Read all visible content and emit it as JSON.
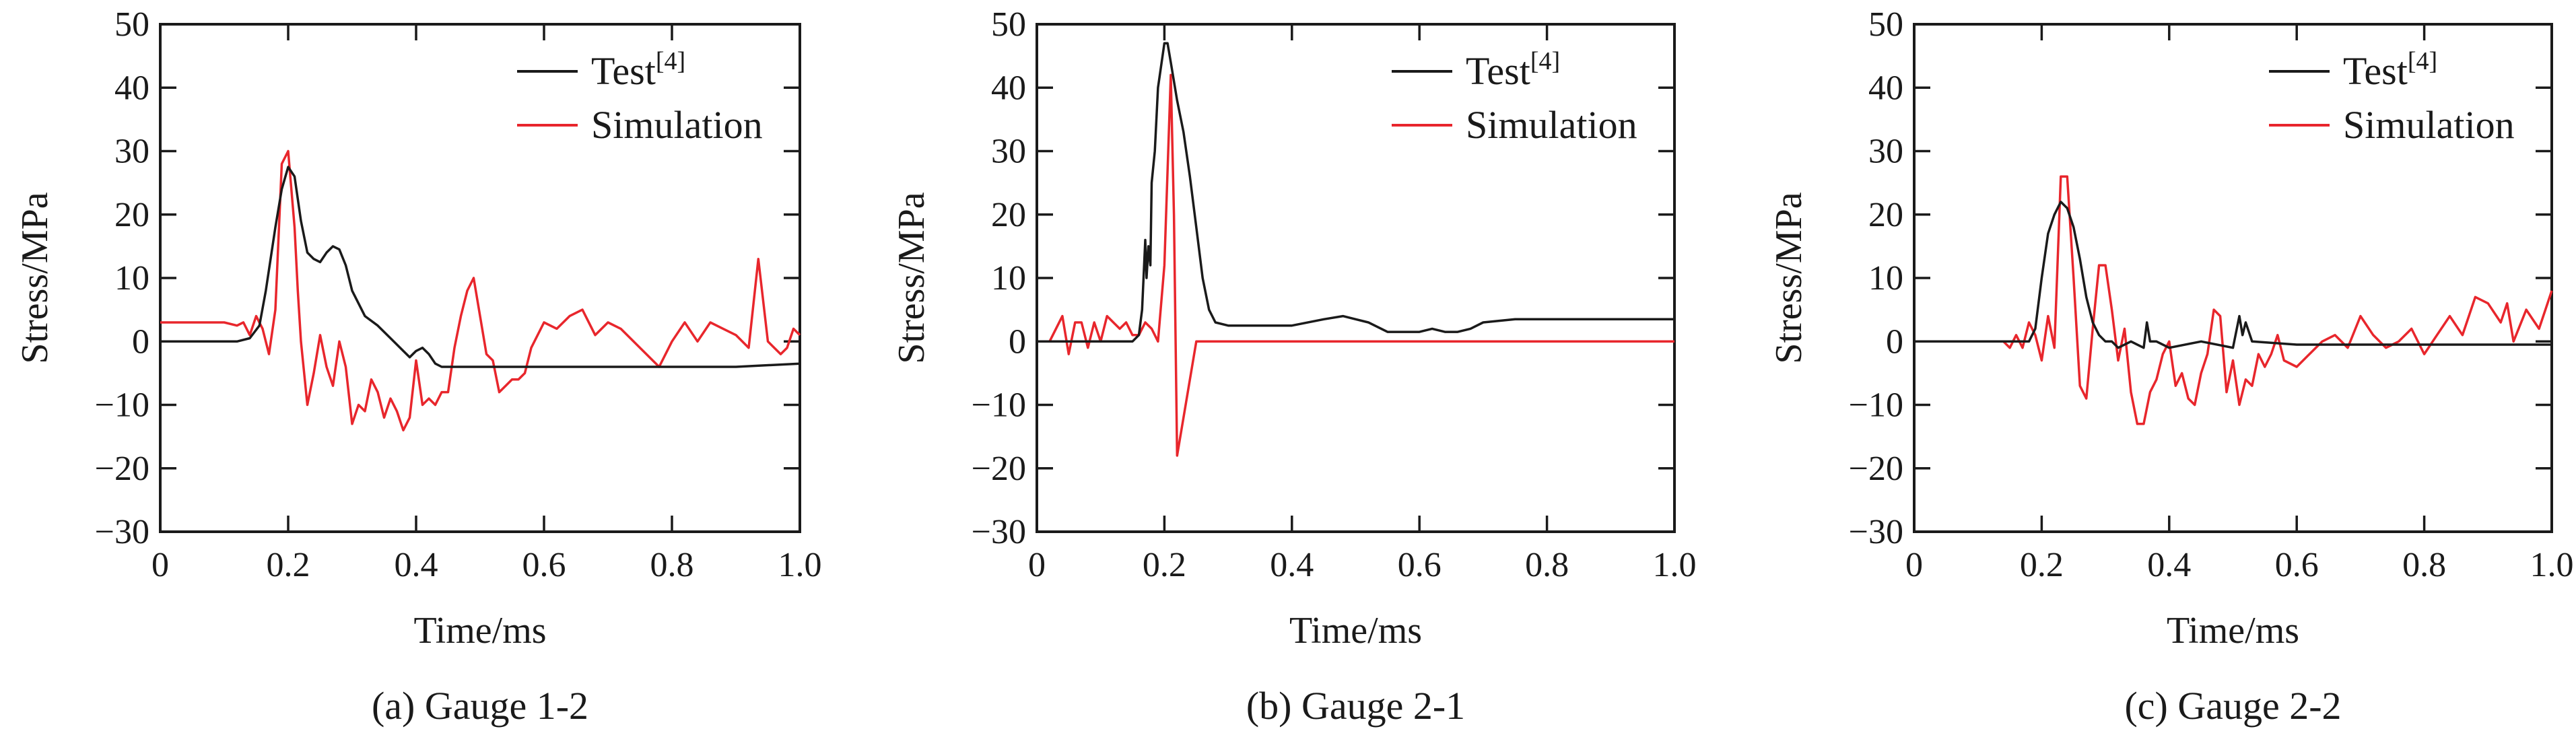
{
  "colors": {
    "test": "#1a1a1a",
    "simulation": "#e8262c",
    "axis": "#1a1a1a"
  },
  "chart_data": [
    {
      "type": "line",
      "caption": "(a) Gauge 1-2",
      "xlabel": "Time/ms",
      "ylabel": "Stress/MPa",
      "xlim": [
        0,
        1.0
      ],
      "ylim": [
        -30,
        50
      ],
      "xticks": [
        "0",
        "0.2",
        "0.4",
        "0.6",
        "0.8",
        "1.0"
      ],
      "yticks": [
        "50",
        "40",
        "30",
        "20",
        "10",
        "0",
        "−10",
        "−20",
        "−30"
      ],
      "legend_position": "top-right",
      "grid": false,
      "series": [
        {
          "name": "Test",
          "name_sup": "[4]",
          "color": "#1a1a1a",
          "x": [
            0,
            0.12,
            0.14,
            0.155,
            0.165,
            0.18,
            0.19,
            0.2,
            0.21,
            0.22,
            0.23,
            0.24,
            0.25,
            0.26,
            0.27,
            0.28,
            0.29,
            0.3,
            0.32,
            0.34,
            0.36,
            0.38,
            0.39,
            0.4,
            0.41,
            0.42,
            0.43,
            0.44,
            0.5,
            0.6,
            0.7,
            0.8,
            0.9,
            1.0
          ],
          "y": [
            0,
            0,
            0.5,
            2.5,
            8,
            18,
            24,
            27.5,
            26,
            19,
            14,
            13,
            12.5,
            14,
            15,
            14.5,
            12,
            8,
            4,
            2.5,
            0.5,
            -1.5,
            -2.5,
            -1.5,
            -1,
            -2,
            -3.5,
            -4,
            -4,
            -4,
            -4,
            -4,
            -4,
            -3.5
          ]
        },
        {
          "name": "Simulation",
          "color": "#e8262c",
          "x": [
            0,
            0.1,
            0.12,
            0.13,
            0.14,
            0.15,
            0.16,
            0.17,
            0.18,
            0.19,
            0.2,
            0.21,
            0.215,
            0.22,
            0.23,
            0.24,
            0.25,
            0.26,
            0.27,
            0.28,
            0.29,
            0.3,
            0.31,
            0.32,
            0.33,
            0.34,
            0.35,
            0.36,
            0.37,
            0.38,
            0.39,
            0.4,
            0.41,
            0.42,
            0.43,
            0.44,
            0.45,
            0.46,
            0.47,
            0.48,
            0.49,
            0.5,
            0.51,
            0.52,
            0.53,
            0.54,
            0.55,
            0.56,
            0.57,
            0.58,
            0.6,
            0.62,
            0.64,
            0.66,
            0.68,
            0.7,
            0.72,
            0.74,
            0.76,
            0.78,
            0.8,
            0.82,
            0.84,
            0.86,
            0.88,
            0.9,
            0.92,
            0.935,
            0.95,
            0.96,
            0.97,
            0.98,
            0.99,
            1.0
          ],
          "y": [
            3,
            3,
            2.5,
            3,
            1,
            4,
            2,
            -2,
            5,
            28,
            30,
            18,
            8,
            0,
            -10,
            -5,
            1,
            -4,
            -7,
            0,
            -4,
            -13,
            -10,
            -11,
            -6,
            -8,
            -12,
            -9,
            -11,
            -14,
            -12,
            -3,
            -10,
            -9,
            -10,
            -8,
            -8,
            -1,
            4,
            8,
            10,
            4,
            -2,
            -3,
            -8,
            -7,
            -6,
            -6,
            -5,
            -1,
            3,
            2,
            4,
            5,
            1,
            3,
            2,
            0,
            -2,
            -4,
            0,
            3,
            0,
            3,
            2,
            1,
            -1,
            13,
            0,
            -1,
            -2,
            -1,
            2,
            1
          ]
        }
      ]
    },
    {
      "type": "line",
      "caption": "(b) Gauge 2-1",
      "xlabel": "Time/ms",
      "ylabel": "Stress/MPa",
      "xlim": [
        0,
        1.0
      ],
      "ylim": [
        -30,
        50
      ],
      "xticks": [
        "0",
        "0.2",
        "0.4",
        "0.6",
        "0.8",
        "1.0"
      ],
      "yticks": [
        "50",
        "40",
        "30",
        "20",
        "10",
        "0",
        "−10",
        "−20",
        "−30"
      ],
      "legend_position": "top-right",
      "grid": false,
      "series": [
        {
          "name": "Test",
          "name_sup": "[4]",
          "color": "#1a1a1a",
          "x": [
            0,
            0.15,
            0.16,
            0.165,
            0.17,
            0.172,
            0.175,
            0.178,
            0.18,
            0.185,
            0.19,
            0.2,
            0.205,
            0.21,
            0.22,
            0.23,
            0.24,
            0.25,
            0.26,
            0.27,
            0.28,
            0.3,
            0.35,
            0.4,
            0.45,
            0.48,
            0.5,
            0.52,
            0.55,
            0.6,
            0.62,
            0.64,
            0.66,
            0.68,
            0.7,
            0.75,
            0.8,
            0.9,
            1.0
          ],
          "y": [
            0,
            0,
            1,
            5,
            16,
            10,
            15,
            12,
            25,
            30,
            40,
            47,
            47,
            44,
            38,
            33,
            26,
            18,
            10,
            5,
            3,
            2.5,
            2.5,
            2.5,
            3.5,
            4,
            3.5,
            3,
            1.5,
            1.5,
            2,
            1.5,
            1.5,
            2,
            3,
            3.5,
            3.5,
            3.5,
            3.5
          ]
        },
        {
          "name": "Simulation",
          "color": "#e8262c",
          "x": [
            0,
            0.02,
            0.04,
            0.05,
            0.06,
            0.07,
            0.08,
            0.09,
            0.1,
            0.11,
            0.12,
            0.13,
            0.14,
            0.15,
            0.16,
            0.17,
            0.18,
            0.19,
            0.2,
            0.21,
            0.215,
            0.22,
            0.23,
            0.25,
            0.5,
            0.75,
            1.0
          ],
          "y": [
            0,
            0,
            4,
            -2,
            3,
            3,
            -1,
            3,
            0,
            4,
            3,
            2,
            3,
            1,
            1,
            3,
            2,
            0,
            12,
            42,
            20,
            -18,
            -12,
            0,
            0,
            0,
            0
          ]
        }
      ]
    },
    {
      "type": "line",
      "caption": "(c) Gauge 2-2",
      "xlabel": "Time/ms",
      "ylabel": "Stress/MPa",
      "xlim": [
        0,
        1.0
      ],
      "ylim": [
        -30,
        50
      ],
      "xticks": [
        "0",
        "0.2",
        "0.4",
        "0.6",
        "0.8",
        "1.0"
      ],
      "yticks": [
        "50",
        "40",
        "30",
        "20",
        "10",
        "0",
        "−10",
        "−20",
        "−30"
      ],
      "legend_position": "top-right",
      "grid": false,
      "series": [
        {
          "name": "Test",
          "name_sup": "[4]",
          "color": "#1a1a1a",
          "x": [
            0,
            0.18,
            0.19,
            0.2,
            0.21,
            0.22,
            0.23,
            0.24,
            0.25,
            0.26,
            0.27,
            0.28,
            0.29,
            0.3,
            0.31,
            0.32,
            0.34,
            0.36,
            0.365,
            0.37,
            0.38,
            0.4,
            0.45,
            0.5,
            0.51,
            0.515,
            0.52,
            0.53,
            0.6,
            0.7,
            0.8,
            0.9,
            1.0
          ],
          "y": [
            0,
            0,
            2,
            10,
            17,
            20,
            22,
            21,
            18,
            13,
            7,
            3,
            1,
            0,
            0,
            -1,
            0,
            -1,
            3,
            0,
            0,
            -1,
            0,
            -1,
            4,
            1,
            3,
            0,
            -0.5,
            -0.5,
            -0.5,
            -0.5,
            -0.5
          ]
        },
        {
          "name": "Simulation",
          "color": "#e8262c",
          "x": [
            0,
            0.14,
            0.15,
            0.16,
            0.17,
            0.18,
            0.19,
            0.2,
            0.21,
            0.22,
            0.23,
            0.24,
            0.25,
            0.26,
            0.27,
            0.28,
            0.29,
            0.3,
            0.31,
            0.32,
            0.33,
            0.34,
            0.35,
            0.36,
            0.37,
            0.38,
            0.39,
            0.4,
            0.41,
            0.42,
            0.43,
            0.44,
            0.45,
            0.46,
            0.47,
            0.48,
            0.49,
            0.5,
            0.51,
            0.52,
            0.53,
            0.54,
            0.55,
            0.56,
            0.57,
            0.58,
            0.6,
            0.62,
            0.64,
            0.66,
            0.68,
            0.7,
            0.72,
            0.74,
            0.76,
            0.78,
            0.8,
            0.82,
            0.84,
            0.86,
            0.88,
            0.9,
            0.92,
            0.93,
            0.94,
            0.96,
            0.98,
            1.0
          ],
          "y": [
            0,
            0,
            -1,
            1,
            -1,
            3,
            1,
            -3,
            4,
            -1,
            26,
            26,
            10,
            -7,
            -9,
            2,
            12,
            12,
            5,
            -3,
            2,
            -8,
            -13,
            -13,
            -8,
            -6,
            -2,
            0,
            -7,
            -5,
            -9,
            -10,
            -5,
            -2,
            5,
            4,
            -8,
            -3,
            -10,
            -6,
            -7,
            -2,
            -4,
            -2,
            1,
            -3,
            -4,
            -2,
            0,
            1,
            -1,
            4,
            1,
            -1,
            0,
            2,
            -2,
            1,
            4,
            1,
            7,
            6,
            3,
            6,
            0,
            5,
            2,
            8
          ]
        }
      ]
    }
  ]
}
